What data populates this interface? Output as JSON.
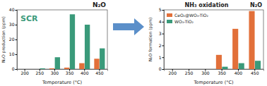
{
  "chart_data": [
    {
      "type": "bar",
      "title": "N₂O",
      "annotations": [
        "SCR"
      ],
      "x_label": "Temperature (°C)",
      "y_label": "N₂O production (ppm)",
      "categories": [
        "200",
        "250",
        "300",
        "350",
        "400",
        "450"
      ],
      "series": [
        {
          "color": "#e2703a",
          "values": [
            0,
            0,
            0.5,
            1,
            4,
            7
          ]
        },
        {
          "color": "#3a9a7a",
          "values": [
            0,
            0.5,
            8,
            37,
            30,
            14
          ]
        }
      ],
      "ylim": [
        0,
        40
      ],
      "yticks": [
        0,
        10,
        20,
        30,
        40
      ]
    },
    {
      "type": "bar",
      "title": "NH₃ oxidation",
      "annotations": [
        "N₂O"
      ],
      "x_label": "Temperature (°C)",
      "y_label": "N₂O formation (ppm)",
      "categories": [
        "200",
        "250",
        "300",
        "350",
        "400",
        "450"
      ],
      "series": [
        {
          "name": "CeO₂@WO₃-TiO₂",
          "color": "#e2703a",
          "values": [
            0,
            0,
            0,
            1.2,
            3.4,
            4.9
          ]
        },
        {
          "name": "WO₃-TiO₂",
          "color": "#3a9a7a",
          "values": [
            0,
            0,
            0,
            0.2,
            0.5,
            0.7
          ]
        }
      ],
      "ylim": [
        0,
        5
      ],
      "yticks": [
        0,
        1,
        2,
        3,
        4,
        5
      ],
      "legend": "upper left"
    }
  ]
}
